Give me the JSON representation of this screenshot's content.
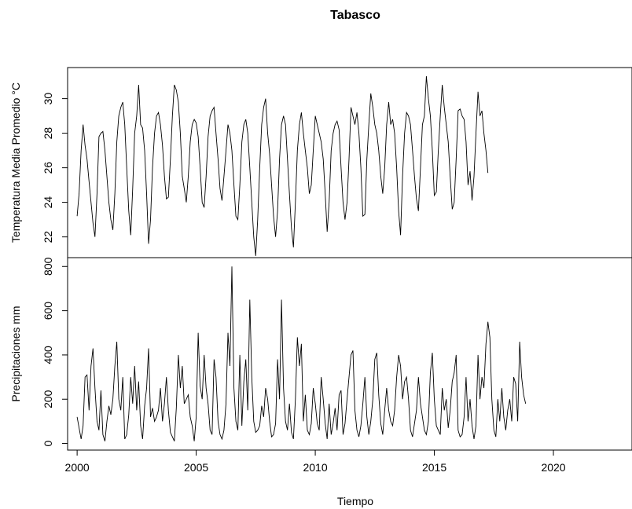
{
  "chart_data": {
    "type": "line",
    "title": "Tabasco",
    "xlabel": "Tiempo",
    "xlim": [
      1999.6,
      2023.3
    ],
    "x_ticks": [
      2000,
      2005,
      2010,
      2015,
      2020
    ],
    "x_tick_labels": [
      "2000",
      "2005",
      "2010",
      "2015",
      "2020"
    ],
    "x_start": 2000.0,
    "x_step": 0.08333,
    "grid": false,
    "legend": "none",
    "panels": [
      {
        "name": "temp",
        "ylabel": "Temperatura Media Promedio °C",
        "ylim": [
          20.8,
          31.8
        ],
        "y_ticks": [
          22,
          24,
          26,
          28,
          30
        ],
        "y_tick_labels": [
          "22",
          "24",
          "26",
          "28",
          "30"
        ],
        "values": [
          23.2,
          24.5,
          27.0,
          28.5,
          27.3,
          26.5,
          25.2,
          24.0,
          22.8,
          22.0,
          24.5,
          27.8,
          28.0,
          28.1,
          27.0,
          25.5,
          24.0,
          23.0,
          22.4,
          24.5,
          27.5,
          29.0,
          29.5,
          29.8,
          28.5,
          26.0,
          23.5,
          22.1,
          24.8,
          28.0,
          29.0,
          30.8,
          28.5,
          28.3,
          27.0,
          24.5,
          21.6,
          23.0,
          26.0,
          28.0,
          29.0,
          29.2,
          28.5,
          27.3,
          25.5,
          24.2,
          24.3,
          26.5,
          29.0,
          30.8,
          30.5,
          29.8,
          28.0,
          25.5,
          24.8,
          24.0,
          25.5,
          27.5,
          28.5,
          28.8,
          28.6,
          27.8,
          26.0,
          24.0,
          23.7,
          25.5,
          27.8,
          29.0,
          29.3,
          29.5,
          28.0,
          26.5,
          24.8,
          24.1,
          25.5,
          27.0,
          28.5,
          28.0,
          27.0,
          25.0,
          23.2,
          23.0,
          25.0,
          27.5,
          28.5,
          28.8,
          28.0,
          26.0,
          24.0,
          22.0,
          20.9,
          23.0,
          26.0,
          28.5,
          29.5,
          30.0,
          28.0,
          26.8,
          25.0,
          23.2,
          22.0,
          23.5,
          26.5,
          28.5,
          29.0,
          28.5,
          26.5,
          24.5,
          22.5,
          21.4,
          24.0,
          27.0,
          28.5,
          29.2,
          28.0,
          27.0,
          26.0,
          24.5,
          25.0,
          27.0,
          29.0,
          28.5,
          28.0,
          27.5,
          26.5,
          24.5,
          22.3,
          24.0,
          27.0,
          28.0,
          28.5,
          28.7,
          28.2,
          26.0,
          24.0,
          23.0,
          24.0,
          26.5,
          29.5,
          29.0,
          28.5,
          29.2,
          28.0,
          26.0,
          23.2,
          23.3,
          26.5,
          28.5,
          30.3,
          29.5,
          28.5,
          28.0,
          27.0,
          25.5,
          24.5,
          26.0,
          28.5,
          29.8,
          28.5,
          28.8,
          28.0,
          26.0,
          23.5,
          22.1,
          25.5,
          28.0,
          29.2,
          29.0,
          28.5,
          27.0,
          25.5,
          24.2,
          23.5,
          26.0,
          28.5,
          29.0,
          31.3,
          30.0,
          29.0,
          27.0,
          24.4,
          24.6,
          27.0,
          29.0,
          30.8,
          29.5,
          28.5,
          27.5,
          25.5,
          23.6,
          24.0,
          26.5,
          29.3,
          29.4,
          29.0,
          28.8,
          27.5,
          25.0,
          25.8,
          24.1,
          25.5,
          28.0,
          30.4,
          29.0,
          29.3,
          28.0,
          27.0,
          25.7
        ]
      },
      {
        "name": "precip",
        "ylabel": "Precipitaciones mm",
        "ylim": [
          -30,
          840
        ],
        "y_ticks": [
          0,
          200,
          400,
          600,
          800
        ],
        "y_tick_labels": [
          "0",
          "200",
          "400",
          "600",
          "800"
        ],
        "values": [
          120,
          70,
          20,
          80,
          300,
          310,
          150,
          350,
          430,
          250,
          100,
          60,
          240,
          40,
          10,
          100,
          170,
          130,
          200,
          350,
          460,
          200,
          150,
          300,
          20,
          40,
          130,
          300,
          180,
          350,
          150,
          280,
          80,
          20,
          170,
          250,
          430,
          120,
          160,
          100,
          120,
          150,
          250,
          100,
          180,
          300,
          150,
          50,
          30,
          10,
          160,
          400,
          250,
          350,
          180,
          200,
          220,
          120,
          80,
          10,
          120,
          500,
          260,
          200,
          400,
          250,
          180,
          60,
          40,
          380,
          300,
          100,
          40,
          20,
          60,
          180,
          500,
          350,
          800,
          250,
          100,
          60,
          400,
          80,
          280,
          380,
          150,
          650,
          300,
          100,
          50,
          60,
          80,
          170,
          120,
          250,
          200,
          100,
          30,
          40,
          90,
          380,
          200,
          650,
          250,
          100,
          60,
          180,
          50,
          20,
          200,
          480,
          350,
          450,
          100,
          220,
          60,
          40,
          90,
          250,
          180,
          90,
          60,
          300,
          200,
          90,
          20,
          180,
          40,
          90,
          160,
          60,
          220,
          240,
          40,
          90,
          200,
          300,
          400,
          420,
          150,
          60,
          30,
          80,
          180,
          300,
          120,
          40,
          100,
          200,
          380,
          410,
          220,
          90,
          40,
          150,
          250,
          150,
          100,
          80,
          150,
          300,
          400,
          350,
          200,
          280,
          300,
          200,
          60,
          30,
          90,
          150,
          300,
          180,
          120,
          60,
          40,
          100,
          320,
          410,
          200,
          80,
          60,
          40,
          250,
          150,
          200,
          70,
          150,
          280,
          320,
          400,
          60,
          30,
          40,
          120,
          300,
          100,
          200,
          80,
          20,
          80,
          400,
          200,
          300,
          250,
          450,
          550,
          480,
          200,
          60,
          30,
          200,
          100,
          250,
          120,
          60,
          150,
          200,
          100,
          300,
          270,
          100,
          460,
          300,
          220,
          180
        ]
      }
    ]
  }
}
